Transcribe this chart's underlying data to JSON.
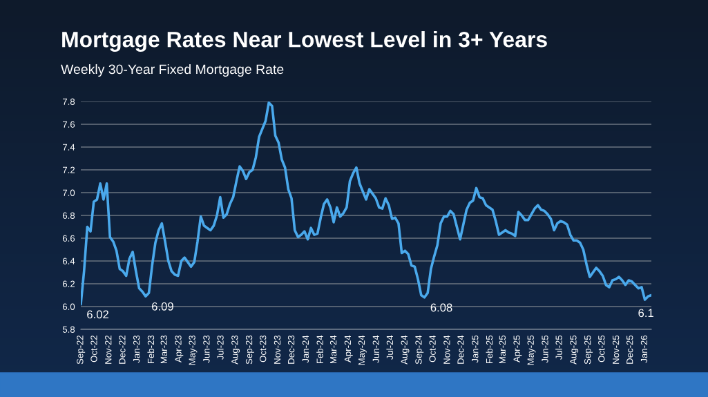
{
  "chart_data": {
    "type": "line",
    "title": "Mortgage Rates Near Lowest Level in 3+ Years",
    "subtitle": "Weekly 30-Year Fixed Mortgage Rate",
    "x": [
      "2022-09-01",
      "2022-09-08",
      "2022-09-15",
      "2022-09-22",
      "2022-09-29",
      "2022-10-06",
      "2022-10-13",
      "2022-10-20",
      "2022-10-27",
      "2022-11-03",
      "2022-11-10",
      "2022-11-17",
      "2022-11-24",
      "2022-12-01",
      "2022-12-08",
      "2022-12-15",
      "2022-12-22",
      "2022-12-29",
      "2023-01-05",
      "2023-01-12",
      "2023-01-19",
      "2023-01-26",
      "2023-02-02",
      "2023-02-09",
      "2023-02-16",
      "2023-02-23",
      "2023-03-02",
      "2023-03-09",
      "2023-03-16",
      "2023-03-23",
      "2023-03-30",
      "2023-04-06",
      "2023-04-13",
      "2023-04-20",
      "2023-04-27",
      "2023-05-04",
      "2023-05-11",
      "2023-05-18",
      "2023-05-25",
      "2023-06-01",
      "2023-06-08",
      "2023-06-15",
      "2023-06-22",
      "2023-06-29",
      "2023-07-06",
      "2023-07-13",
      "2023-07-20",
      "2023-07-27",
      "2023-08-03",
      "2023-08-10",
      "2023-08-17",
      "2023-08-24",
      "2023-08-31",
      "2023-09-07",
      "2023-09-14",
      "2023-09-21",
      "2023-09-28",
      "2023-10-05",
      "2023-10-12",
      "2023-10-19",
      "2023-10-26",
      "2023-11-02",
      "2023-11-09",
      "2023-11-16",
      "2023-11-23",
      "2023-11-30",
      "2023-12-07",
      "2023-12-14",
      "2023-12-21",
      "2023-12-28",
      "2024-01-04",
      "2024-01-11",
      "2024-01-18",
      "2024-01-25",
      "2024-02-01",
      "2024-02-08",
      "2024-02-15",
      "2024-02-22",
      "2024-02-29",
      "2024-03-07",
      "2024-03-14",
      "2024-03-21",
      "2024-03-28",
      "2024-04-04",
      "2024-04-11",
      "2024-04-18",
      "2024-04-25",
      "2024-05-02",
      "2024-05-09",
      "2024-05-16",
      "2024-05-23",
      "2024-05-30",
      "2024-06-06",
      "2024-06-13",
      "2024-06-20",
      "2024-06-27",
      "2024-07-04",
      "2024-07-11",
      "2024-07-18",
      "2024-07-25",
      "2024-08-01",
      "2024-08-08",
      "2024-08-15",
      "2024-08-22",
      "2024-08-29",
      "2024-09-05",
      "2024-09-12",
      "2024-09-19",
      "2024-09-26",
      "2024-10-03",
      "2024-10-10",
      "2024-10-17",
      "2024-10-24",
      "2024-10-31",
      "2024-11-07",
      "2024-11-14",
      "2024-11-21",
      "2024-11-28",
      "2024-12-05",
      "2024-12-12",
      "2024-12-19",
      "2024-12-26",
      "2025-01-02",
      "2025-01-09",
      "2025-01-16",
      "2025-01-23",
      "2025-01-30",
      "2025-02-06",
      "2025-02-13",
      "2025-02-20",
      "2025-02-27",
      "2025-03-06",
      "2025-03-13",
      "2025-03-20",
      "2025-03-27",
      "2025-04-03",
      "2025-04-10",
      "2025-04-17",
      "2025-04-24",
      "2025-05-01",
      "2025-05-08",
      "2025-05-15",
      "2025-05-22",
      "2025-05-29",
      "2025-06-05",
      "2025-06-12",
      "2025-06-19",
      "2025-06-26",
      "2025-07-03",
      "2025-07-10",
      "2025-07-17",
      "2025-07-24",
      "2025-07-31",
      "2025-08-07",
      "2025-08-14",
      "2025-08-21",
      "2025-08-28",
      "2025-09-04",
      "2025-09-11",
      "2025-09-18",
      "2025-09-25",
      "2025-10-02",
      "2025-10-09",
      "2025-10-16",
      "2025-10-23",
      "2025-10-30",
      "2025-11-06",
      "2025-11-13",
      "2025-11-20",
      "2025-11-27",
      "2025-12-04",
      "2025-12-11",
      "2025-12-18",
      "2025-12-25",
      "2026-01-01",
      "2026-01-08",
      "2026-01-15"
    ],
    "series": [
      {
        "color": "#4aa9ec",
        "values": [
          6.02,
          6.31,
          6.7,
          6.66,
          6.92,
          6.94,
          7.08,
          6.94,
          7.08,
          6.61,
          6.57,
          6.49,
          6.33,
          6.31,
          6.27,
          6.42,
          6.48,
          6.31,
          6.16,
          6.13,
          6.09,
          6.12,
          6.36,
          6.56,
          6.67,
          6.73,
          6.57,
          6.4,
          6.31,
          6.28,
          6.27,
          6.4,
          6.43,
          6.39,
          6.35,
          6.39,
          6.57,
          6.79,
          6.71,
          6.69,
          6.67,
          6.71,
          6.8,
          6.96,
          6.78,
          6.81,
          6.9,
          6.96,
          7.1,
          7.23,
          7.19,
          7.12,
          7.18,
          7.2,
          7.31,
          7.49,
          7.56,
          7.63,
          7.79,
          7.76,
          7.5,
          7.44,
          7.29,
          7.22,
          7.03,
          6.95,
          6.67,
          6.61,
          6.63,
          6.66,
          6.59,
          6.69,
          6.63,
          6.64,
          6.78,
          6.9,
          6.94,
          6.87,
          6.74,
          6.87,
          6.79,
          6.82,
          6.87,
          7.1,
          7.17,
          7.22,
          7.08,
          7.01,
          6.94,
          7.03,
          6.99,
          6.95,
          6.87,
          6.86,
          6.95,
          6.89,
          6.77,
          6.78,
          6.73,
          6.47,
          6.49,
          6.46,
          6.36,
          6.35,
          6.24,
          6.1,
          6.08,
          6.12,
          6.33,
          6.44,
          6.54,
          6.73,
          6.79,
          6.79,
          6.84,
          6.81,
          6.7,
          6.59,
          6.72,
          6.85,
          6.91,
          6.93,
          7.04,
          6.96,
          6.95,
          6.89,
          6.87,
          6.85,
          6.75,
          6.63,
          6.65,
          6.67,
          6.65,
          6.64,
          6.62,
          6.83,
          6.8,
          6.76,
          6.76,
          6.81,
          6.86,
          6.89,
          6.85,
          6.84,
          6.81,
          6.77,
          6.67,
          6.73,
          6.75,
          6.74,
          6.72,
          6.63,
          6.58,
          6.58,
          6.56,
          6.5,
          6.37,
          6.26,
          6.3,
          6.34,
          6.31,
          6.27,
          6.19,
          6.17,
          6.23,
          6.24,
          6.26,
          6.23,
          6.19,
          6.23,
          6.22,
          6.19,
          6.16,
          6.17,
          6.06,
          6.09,
          6.1
        ]
      }
    ],
    "xlim": [
      "2022-09-01",
      "2026-01-15"
    ],
    "xticks": [
      {
        "value": "2022-09-01",
        "label": "Sep-22"
      },
      {
        "value": "2022-10-01",
        "label": "Oct-22"
      },
      {
        "value": "2022-11-01",
        "label": "Nov-22"
      },
      {
        "value": "2022-12-01",
        "label": "Dec-22"
      },
      {
        "value": "2023-01-01",
        "label": "Jan-23"
      },
      {
        "value": "2023-02-01",
        "label": "Feb-23"
      },
      {
        "value": "2023-03-01",
        "label": "Mar-23"
      },
      {
        "value": "2023-04-01",
        "label": "Apr-23"
      },
      {
        "value": "2023-05-01",
        "label": "May-23"
      },
      {
        "value": "2023-06-01",
        "label": "Jun-23"
      },
      {
        "value": "2023-07-01",
        "label": "Jul-23"
      },
      {
        "value": "2023-08-01",
        "label": "Aug-23"
      },
      {
        "value": "2023-09-01",
        "label": "Sep-23"
      },
      {
        "value": "2023-10-01",
        "label": "Oct-23"
      },
      {
        "value": "2023-11-01",
        "label": "Nov-23"
      },
      {
        "value": "2023-12-01",
        "label": "Dec-23"
      },
      {
        "value": "2024-01-01",
        "label": "Jan-24"
      },
      {
        "value": "2024-02-01",
        "label": "Feb-24"
      },
      {
        "value": "2024-03-01",
        "label": "Mar-24"
      },
      {
        "value": "2024-04-01",
        "label": "Apr-24"
      },
      {
        "value": "2024-05-01",
        "label": "May-24"
      },
      {
        "value": "2024-06-01",
        "label": "Jun-24"
      },
      {
        "value": "2024-07-01",
        "label": "Jul-24"
      },
      {
        "value": "2024-08-01",
        "label": "Aug-24"
      },
      {
        "value": "2024-09-01",
        "label": "Sep-24"
      },
      {
        "value": "2024-10-01",
        "label": "Oct-24"
      },
      {
        "value": "2024-11-01",
        "label": "Nov-24"
      },
      {
        "value": "2024-12-01",
        "label": "Dec-24"
      },
      {
        "value": "2025-01-01",
        "label": "Jan-25"
      },
      {
        "value": "2025-02-01",
        "label": "Feb-25"
      },
      {
        "value": "2025-03-01",
        "label": "Mar-25"
      },
      {
        "value": "2025-04-01",
        "label": "Apr-25"
      },
      {
        "value": "2025-05-01",
        "label": "May-25"
      },
      {
        "value": "2025-06-01",
        "label": "Jun-25"
      },
      {
        "value": "2025-07-01",
        "label": "Jul-25"
      },
      {
        "value": "2025-08-01",
        "label": "Aug-25"
      },
      {
        "value": "2025-09-01",
        "label": "Sep-25"
      },
      {
        "value": "2025-10-01",
        "label": "Oct-25"
      },
      {
        "value": "2025-11-01",
        "label": "Nov-25"
      },
      {
        "value": "2025-12-01",
        "label": "Dec-25"
      },
      {
        "value": "2026-01-01",
        "label": "Jan-26"
      }
    ],
    "ylim": [
      5.8,
      7.8
    ],
    "yticks": [
      5.8,
      {
        "value": 6.0,
        "label": "6.0"
      },
      6.2,
      6.4,
      6.6,
      6.8,
      {
        "value": 7.0,
        "label": "7.0"
      },
      7.2,
      7.4,
      7.6,
      7.8
    ],
    "grid": "y",
    "annotations": [
      {
        "text": "6.02",
        "x": "2022-09-01",
        "y": 6.02
      },
      {
        "text": "6.09",
        "x": "2023-01-19",
        "y": 6.09
      },
      {
        "text": "6.08",
        "x": "2024-09-12",
        "y": 6.08
      },
      {
        "text": "6.1",
        "x": "2026-01-15",
        "y": 6.1
      }
    ]
  }
}
